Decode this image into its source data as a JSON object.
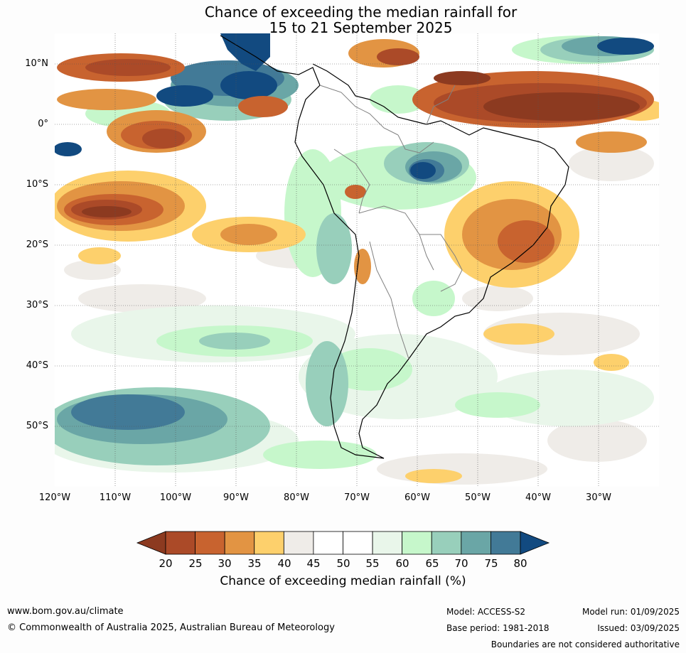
{
  "title_line1": "Chance of exceeding the median rainfall for",
  "title_line2": "15 to 21 September 2025",
  "lat_labels": [
    "10°N",
    "0°",
    "10°S",
    "20°S",
    "30°S",
    "40°S",
    "50°S"
  ],
  "lon_labels": [
    "120°W",
    "110°W",
    "100°W",
    "90°W",
    "80°W",
    "70°W",
    "60°W",
    "50°W",
    "40°W",
    "30°W"
  ],
  "colorbar": {
    "ticks": [
      "20",
      "25",
      "30",
      "35",
      "40",
      "45",
      "50",
      "55",
      "60",
      "65",
      "70",
      "75",
      "80"
    ],
    "colors": [
      "#8c3a20",
      "#ab4a28",
      "#c8632f",
      "#e29443",
      "#fdd06c",
      "#efece8",
      "#ffffff",
      "#ffffff",
      "#e9f6ea",
      "#c6f7cb",
      "#98cfbb",
      "#6aa6a6",
      "#427a97",
      "#124a80"
    ],
    "label": "Chance of exceeding median rainfall (%)"
  },
  "footer": {
    "url": "www.bom.gov.au/climate",
    "copyright": "© Commonwealth of Australia 2025, Australian Bureau of Meteorology",
    "model": "Model: ACCESS-S2",
    "base_period": "Base period: 1981-2018",
    "model_run": "Model run: 01/09/2025",
    "issued": "Issued: 03/09/2025",
    "boundaries": "Boundaries are not considered authoritative"
  }
}
